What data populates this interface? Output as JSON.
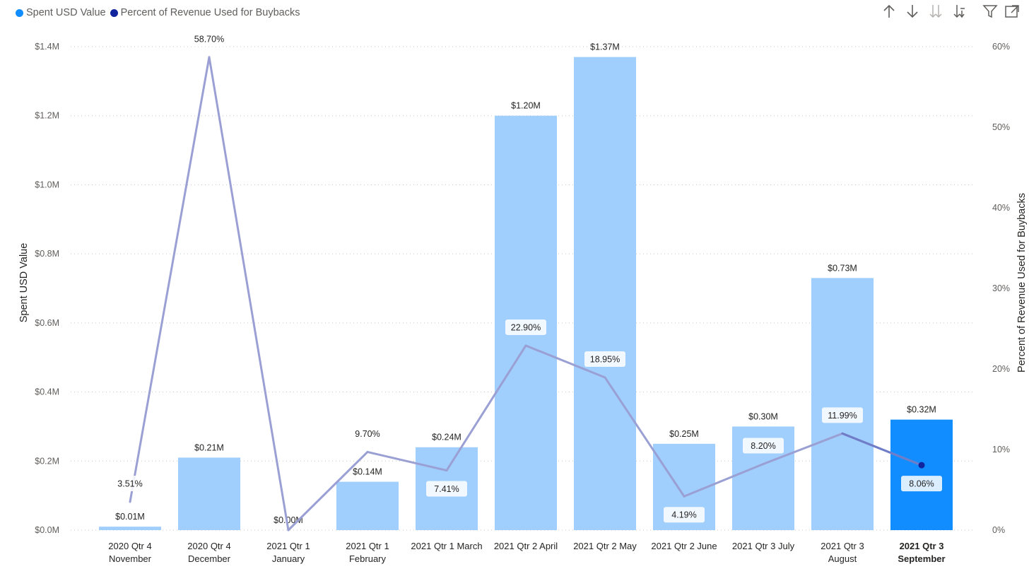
{
  "legend": {
    "items": [
      {
        "label": "Spent USD Value",
        "color": "#118dff"
      },
      {
        "label": "Percent of Revenue Used for Buybacks",
        "color": "#12239e"
      }
    ]
  },
  "toolbar": {
    "icons": [
      "arrow-up-icon",
      "arrow-down-icon",
      "double-arrow-down-icon",
      "expand-hierarchy-icon",
      "filter-icon",
      "focus-mode-icon"
    ]
  },
  "chart_data": {
    "type": "bar",
    "combo": "bar+line",
    "categories": [
      [
        "2020 Qtr 4",
        "November"
      ],
      [
        "2020 Qtr 4",
        "December"
      ],
      [
        "2021 Qtr 1",
        "January"
      ],
      [
        "2021 Qtr 1",
        "February"
      ],
      [
        "2021 Qtr 1 March"
      ],
      [
        "2021 Qtr 2 April"
      ],
      [
        "2021 Qtr 2 May"
      ],
      [
        "2021 Qtr 2 June"
      ],
      [
        "2021 Qtr 3 July"
      ],
      [
        "2021 Qtr 3",
        "August"
      ],
      [
        "2021 Qtr 3",
        "September"
      ]
    ],
    "highlighted_index": 10,
    "series": [
      {
        "name": "Spent USD Value",
        "kind": "bar",
        "axis": "left",
        "values": [
          0.01,
          0.21,
          0.0,
          0.14,
          0.24,
          1.2,
          1.37,
          0.25,
          0.3,
          0.73,
          0.32
        ],
        "labels": [
          "$0.01M",
          "$0.21M",
          "$0.00M",
          "$0.14M",
          "$0.24M",
          "$1.20M",
          "$1.37M",
          "$0.25M",
          "$0.30M",
          "$0.73M",
          "$0.32M"
        ],
        "color": "#a0cefd",
        "highlight_color": "#118dff"
      },
      {
        "name": "Percent of Revenue Used for Buybacks",
        "kind": "line",
        "axis": "right",
        "values": [
          3.51,
          58.7,
          0.0,
          9.7,
          7.41,
          22.9,
          18.95,
          4.19,
          8.2,
          11.99,
          8.06
        ],
        "labels": [
          "3.51%",
          "58.70%",
          "",
          "9.70%",
          "7.41%",
          "22.90%",
          "18.95%",
          "4.19%",
          "8.20%",
          "11.99%",
          "8.06%"
        ],
        "color": "#9aa0d4",
        "highlight_color": "#12239e"
      }
    ],
    "ylabel": "Spent USD Value",
    "y2label": "Percent of Revenue Used for Buybacks",
    "ylim": [
      0,
      1.4
    ],
    "y2lim": [
      0,
      60
    ],
    "yticks": [
      "$0.0M",
      "$0.2M",
      "$0.4M",
      "$0.6M",
      "$0.8M",
      "$1.0M",
      "$1.2M",
      "$1.4M"
    ],
    "y2ticks": [
      "0%",
      "10%",
      "20%",
      "30%",
      "40%",
      "50%",
      "60%"
    ],
    "grid": true,
    "legend_position": "top-left"
  }
}
